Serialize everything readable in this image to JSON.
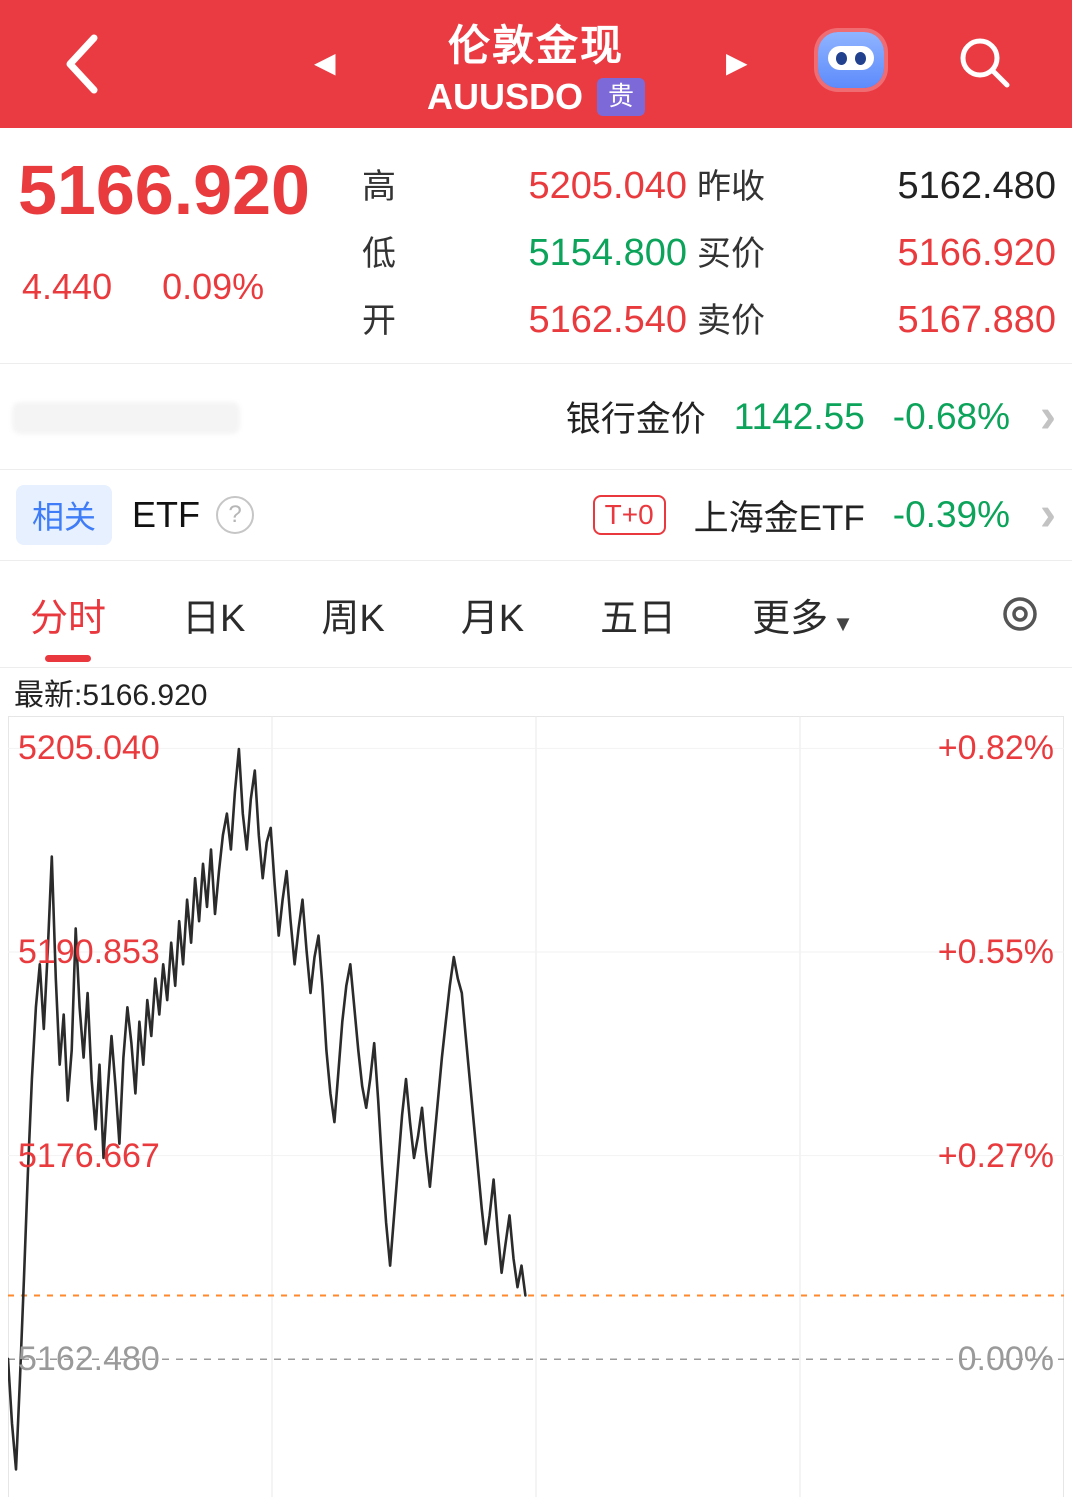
{
  "header": {
    "title": "伦敦金现",
    "symbol": "AUUSDO",
    "badge": "贵"
  },
  "quote": {
    "price": "5166.920",
    "change": "4.440",
    "change_pct": "0.09%",
    "stats": [
      {
        "label": "高",
        "value": "5205.040"
      },
      {
        "label": "低",
        "value": "5154.800"
      },
      {
        "label": "开",
        "value": "5162.540"
      },
      {
        "label": "昨收",
        "value": "5162.480"
      },
      {
        "label": "买价",
        "value": "5166.920"
      },
      {
        "label": "卖价",
        "value": "5167.880"
      }
    ]
  },
  "bank_row": {
    "label": "银行金价",
    "price": "1142.55",
    "change_pct": "-0.68%"
  },
  "etf_row": {
    "tag": "相关",
    "label": "ETF",
    "help": "?",
    "badge": "T+0",
    "name": "上海金ETF",
    "change_pct": "-0.39%"
  },
  "tabs": [
    {
      "label": "分时"
    },
    {
      "label": "日K"
    },
    {
      "label": "周K"
    },
    {
      "label": "月K"
    },
    {
      "label": "五日"
    },
    {
      "label": "更多"
    }
  ],
  "more_caret": "▼",
  "latest_label": "最新:5166.920",
  "colors": {
    "accent_red": "#e93a3e",
    "green": "#0ca35a",
    "header_red": "#ea3b43",
    "badge_purple": "#7d6ad8",
    "orange_dash": "#ff8a2e"
  },
  "chart_data": {
    "type": "line",
    "title": "AUUSDO 分时",
    "latest": 5166.92,
    "prev_close": 5162.48,
    "high": 5205.04,
    "low": 5154.8,
    "x_fraction_covered": 0.49,
    "axis": {
      "price_min": 5152.6,
      "price_max": 5207.3
    },
    "y_gridlines": [
      {
        "price": "5205.040",
        "pct": "+0.82%",
        "value": 5205.04
      },
      {
        "price": "5190.853",
        "pct": "+0.55%",
        "value": 5190.853
      },
      {
        "price": "5176.667",
        "pct": "+0.27%",
        "value": 5176.667
      },
      {
        "price": "5162.480",
        "pct": "0.00%",
        "value": 5162.48
      }
    ],
    "series": [
      5162.5,
      5158.0,
      5154.8,
      5161.0,
      5168.0,
      5175.5,
      5182.0,
      5187.0,
      5190.0,
      5185.5,
      5191.0,
      5197.5,
      5189.0,
      5183.0,
      5186.5,
      5180.5,
      5184.0,
      5192.5,
      5187.0,
      5183.5,
      5188.0,
      5182.0,
      5178.5,
      5183.0,
      5176.5,
      5181.0,
      5185.0,
      5181.5,
      5177.5,
      5183.5,
      5187.0,
      5184.5,
      5181.0,
      5186.0,
      5183.0,
      5187.5,
      5185.0,
      5189.0,
      5186.5,
      5190.0,
      5187.5,
      5191.5,
      5188.5,
      5193.0,
      5190.0,
      5194.5,
      5191.5,
      5196.0,
      5193.0,
      5197.0,
      5194.0,
      5198.0,
      5193.5,
      5196.5,
      5199.0,
      5200.5,
      5198.0,
      5202.0,
      5205.0,
      5200.5,
      5198.0,
      5201.5,
      5203.5,
      5199.0,
      5196.0,
      5198.5,
      5199.5,
      5195.5,
      5192.0,
      5194.5,
      5196.5,
      5193.0,
      5190.0,
      5192.5,
      5194.5,
      5191.0,
      5188.0,
      5190.5,
      5192.0,
      5188.5,
      5184.0,
      5181.0,
      5179.0,
      5182.5,
      5186.0,
      5188.5,
      5190.0,
      5187.0,
      5184.0,
      5181.5,
      5180.0,
      5182.0,
      5184.5,
      5180.5,
      5176.0,
      5172.0,
      5169.0,
      5172.5,
      5176.0,
      5179.5,
      5182.0,
      5179.0,
      5176.5,
      5178.0,
      5180.0,
      5177.0,
      5174.5,
      5177.5,
      5180.5,
      5183.5,
      5186.0,
      5188.5,
      5190.5,
      5189.0,
      5188.0,
      5185.0,
      5182.0,
      5179.0,
      5176.0,
      5173.0,
      5170.5,
      5172.5,
      5175.0,
      5171.5,
      5168.5,
      5170.5,
      5172.5,
      5169.5,
      5167.5,
      5169.0,
      5166.92
    ]
  }
}
